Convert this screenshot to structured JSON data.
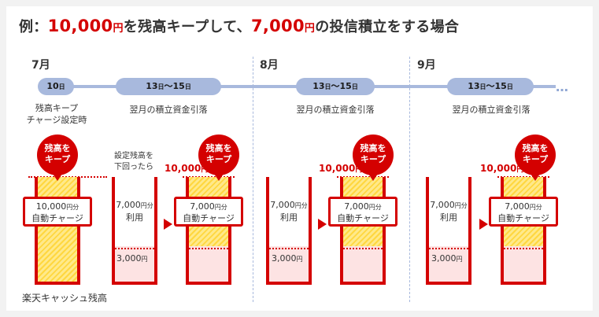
{
  "headline": {
    "prefix": "例：",
    "keep_amount": "10,000",
    "yen": "円",
    "middle": "を残高キープして、",
    "invest_amount": "7,000",
    "suffix": "の投信積立をする場合"
  },
  "months": [
    "7月",
    "8月",
    "9月"
  ],
  "timeline": {
    "pill_10": {
      "day": "10",
      "unit": "日"
    },
    "pill_range": {
      "from_day": "13",
      "to_day": "15",
      "unit": "日",
      "sep": "～"
    },
    "dots": "…",
    "setting_label_line1": "残高キープ",
    "setting_label_line2": "チャージ設定時",
    "debit_label": "翌月の積立資金引落"
  },
  "bubble": {
    "line1": "残高を",
    "line2": "キープ"
  },
  "charge_box": {
    "first_amount": "10,000",
    "amount": "7,000",
    "unit": "円分",
    "label": "自動チャージ"
  },
  "used": {
    "amount": "7,000",
    "unit": "円分",
    "label": "利用"
  },
  "level_3000": {
    "amount": "3,000",
    "unit": "円"
  },
  "level_10000": {
    "amount": "10,000",
    "unit": "円"
  },
  "setting_note": {
    "line1": "設定残高を",
    "line2": "下回ったら"
  },
  "footer": "楽天キャッシュ残高",
  "colors": {
    "red": "#d40000",
    "blue": "#a8b9dd",
    "yellow": "#ffd740",
    "pink": "#fde3e3"
  }
}
